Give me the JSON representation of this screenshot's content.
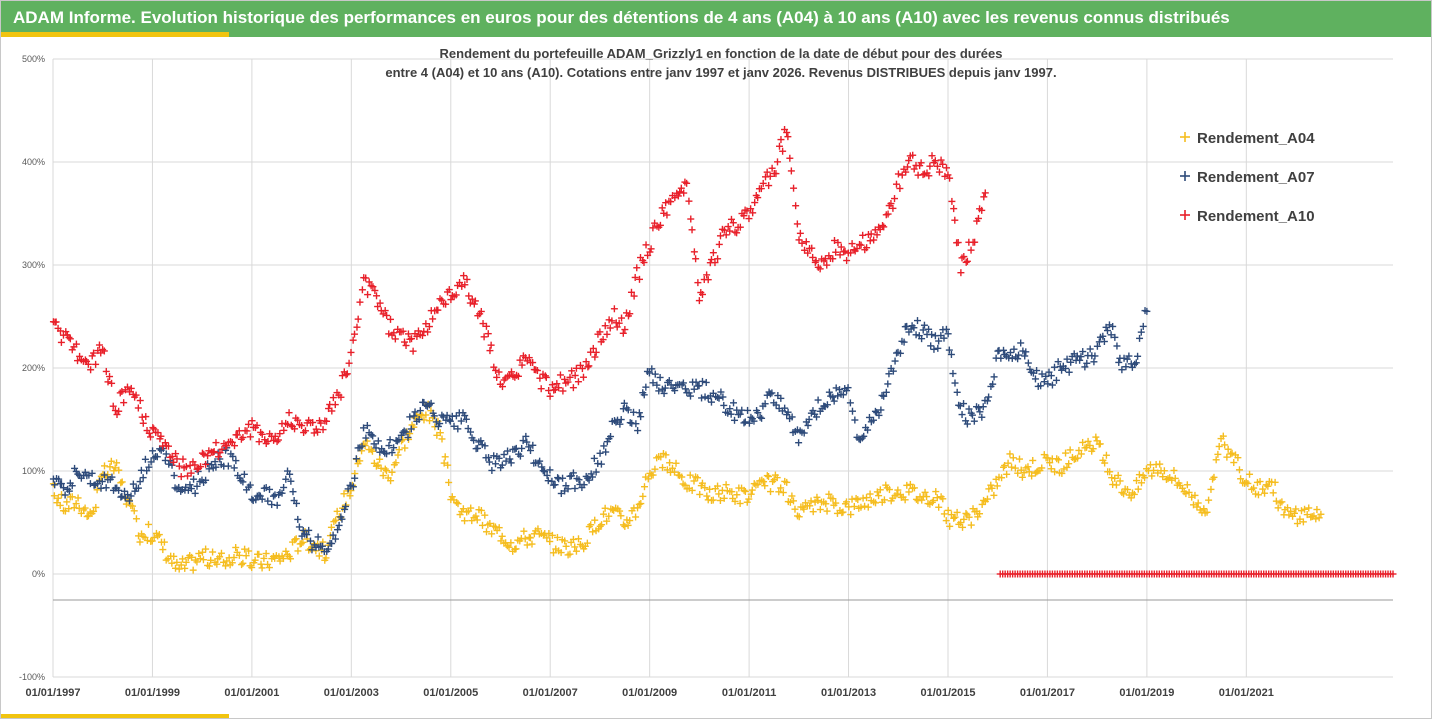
{
  "banner": {
    "title": "ADAM Informe. Evolution historique des performances en euros pour des détentions de 4 ans (A04) à 10 ans (A10) avec les revenus connus distribués",
    "color": "#5fb15f",
    "accent_color": "#f1c40f"
  },
  "chart_data": {
    "type": "scatter",
    "marker": "+",
    "title_line1": "Rendement du portefeuille ADAM_Grizzly1 en fonction de la date de début pour des durées",
    "title_line2": "entre 4 (A04) et 10 ans (A10). Cotations entre janv 1997 et janv 2026. Revenus DISTRIBUES depuis janv 1997.",
    "xlabel": "",
    "ylabel": "",
    "x_range": [
      1997.0,
      2023.95
    ],
    "ylim": [
      -100,
      500
    ],
    "y_ticks": [
      -100,
      0,
      100,
      200,
      300,
      400,
      500
    ],
    "y_tick_labels": [
      "-100%",
      "0%",
      "100%",
      "200%",
      "300%",
      "400%",
      "500%"
    ],
    "x_ticks": [
      1997,
      1999,
      2001,
      2003,
      2005,
      2007,
      2009,
      2011,
      2013,
      2015,
      2017,
      2019,
      2021
    ],
    "x_tick_labels": [
      "01/01/1997",
      "01/01/1999",
      "01/01/2001",
      "01/01/2003",
      "01/01/2005",
      "01/01/2007",
      "01/01/2009",
      "01/01/2011",
      "01/01/2013",
      "01/01/2015",
      "01/01/2017",
      "01/01/2019",
      "01/01/2021"
    ],
    "grid": true,
    "legend_position": "top-right",
    "series": [
      {
        "name": "Rendement_A04",
        "color": "#f5bd1f",
        "x": [
          1997.0,
          1997.25,
          1997.5,
          1997.75,
          1998.0,
          1998.25,
          1998.4,
          1998.5,
          1998.75,
          1999.0,
          1999.25,
          1999.5,
          1999.75,
          2000.0,
          2000.25,
          2000.5,
          2000.75,
          2001.0,
          2001.25,
          2001.5,
          2001.75,
          2002.0,
          2002.25,
          2002.5,
          2002.75,
          2003.0,
          2003.25,
          2003.5,
          2003.75,
          2004.0,
          2004.25,
          2004.5,
          2004.75,
          2005.0,
          2005.25,
          2005.5,
          2005.75,
          2006.0,
          2006.25,
          2006.5,
          2006.75,
          2007.0,
          2007.25,
          2007.5,
          2007.75,
          2008.0,
          2008.25,
          2008.5,
          2008.75,
          2009.0,
          2009.25,
          2009.5,
          2009.75,
          2010.0,
          2010.25,
          2010.5,
          2010.75,
          2011.0,
          2011.25,
          2011.5,
          2011.75,
          2012.0,
          2012.25,
          2012.5,
          2012.75,
          2013.0,
          2013.25,
          2013.5,
          2013.75,
          2014.0,
          2014.25,
          2014.5,
          2014.75,
          2015.0,
          2015.25,
          2015.5,
          2015.75,
          2016.0,
          2016.25,
          2016.5,
          2016.75,
          2017.0,
          2017.25,
          2017.5,
          2017.75,
          2018.0,
          2018.25,
          2018.5,
          2018.75,
          2019.0,
          2019.25,
          2019.5,
          2019.75,
          2020.0,
          2020.25,
          2020.5,
          2020.75,
          2021.0,
          2021.25,
          2021.5,
          2021.75,
          2022.0,
          2022.25,
          2022.5
        ],
        "y": [
          80,
          65,
          72,
          55,
          95,
          105,
          85,
          70,
          40,
          40,
          25,
          5,
          10,
          18,
          12,
          15,
          18,
          12,
          12,
          15,
          20,
          35,
          30,
          20,
          60,
          85,
          130,
          110,
          95,
          125,
          145,
          160,
          140,
          80,
          55,
          60,
          45,
          40,
          30,
          35,
          38,
          30,
          28,
          25,
          35,
          55,
          60,
          50,
          65,
          100,
          110,
          100,
          90,
          85,
          75,
          80,
          78,
          75,
          85,
          90,
          80,
          55,
          65,
          70,
          68,
          65,
          70,
          75,
          78,
          82,
          80,
          75,
          78,
          55,
          50,
          55,
          70,
          90,
          110,
          100,
          105,
          110,
          105,
          115,
          120,
          125,
          100,
          85,
          80,
          100,
          105,
          95,
          85,
          70,
          65,
          130,
          110,
          90,
          85,
          90,
          60,
          55,
          60,
          58
        ]
      },
      {
        "name": "Rendement_A07",
        "color": "#2e4b7a",
        "x": [
          1997.0,
          1997.25,
          1997.5,
          1997.75,
          1998.0,
          1998.25,
          1998.5,
          1998.75,
          1999.0,
          1999.25,
          1999.5,
          1999.75,
          2000.0,
          2000.25,
          2000.5,
          2000.75,
          2001.0,
          2001.25,
          2001.5,
          2001.75,
          2002.0,
          2002.25,
          2002.5,
          2002.75,
          2003.0,
          2003.25,
          2003.5,
          2003.75,
          2004.0,
          2004.25,
          2004.5,
          2004.75,
          2005.0,
          2005.25,
          2005.5,
          2005.75,
          2006.0,
          2006.25,
          2006.5,
          2006.75,
          2007.0,
          2007.25,
          2007.5,
          2007.75,
          2008.0,
          2008.25,
          2008.5,
          2008.75,
          2009.0,
          2009.25,
          2009.5,
          2009.75,
          2010.0,
          2010.25,
          2010.5,
          2010.75,
          2011.0,
          2011.25,
          2011.5,
          2011.75,
          2012.0,
          2012.25,
          2012.5,
          2012.75,
          2013.0,
          2013.2,
          2013.5,
          2013.75,
          2014.0,
          2014.25,
          2014.5,
          2014.75,
          2015.0,
          2015.25,
          2015.5,
          2015.75,
          2016.0,
          2016.25,
          2016.5,
          2016.75,
          2017.0,
          2017.25,
          2017.5,
          2017.75,
          2018.0,
          2018.25,
          2018.5,
          2018.75,
          2019.0
        ],
        "y": [
          95,
          85,
          100,
          95,
          90,
          85,
          75,
          90,
          120,
          115,
          85,
          80,
          95,
          110,
          115,
          100,
          80,
          75,
          75,
          95,
          40,
          30,
          25,
          50,
          85,
          140,
          125,
          120,
          130,
          150,
          165,
          150,
          145,
          150,
          130,
          110,
          105,
          115,
          125,
          110,
          95,
          85,
          90,
          95,
          110,
          140,
          160,
          145,
          200,
          180,
          185,
          180,
          180,
          175,
          165,
          155,
          150,
          160,
          175,
          160,
          130,
          150,
          170,
          175,
          180,
          130,
          150,
          180,
          215,
          245,
          235,
          225,
          235,
          160,
          150,
          165,
          210,
          215,
          220,
          190,
          185,
          200,
          205,
          210,
          215,
          245,
          200,
          205,
          255
        ]
      },
      {
        "name": "Rendement_A10",
        "color": "#e8202a",
        "x": [
          1997.0,
          1997.25,
          1997.5,
          1997.75,
          1998.0,
          1998.25,
          1998.5,
          1998.75,
          1999.0,
          1999.25,
          1999.5,
          1999.75,
          2000.0,
          2000.25,
          2000.5,
          2000.75,
          2001.0,
          2001.25,
          2001.5,
          2001.75,
          2002.0,
          2002.25,
          2002.5,
          2002.75,
          2003.0,
          2003.25,
          2003.5,
          2003.75,
          2004.0,
          2004.25,
          2004.5,
          2004.75,
          2005.0,
          2005.25,
          2005.5,
          2005.75,
          2006.0,
          2006.25,
          2006.5,
          2006.75,
          2007.0,
          2007.25,
          2007.5,
          2007.75,
          2008.0,
          2008.25,
          2008.5,
          2008.75,
          2009.0,
          2009.25,
          2009.5,
          2009.75,
          2010.0,
          2010.25,
          2010.5,
          2010.75,
          2011.0,
          2011.25,
          2011.5,
          2011.75,
          2012.0,
          2012.25,
          2012.5,
          2012.75,
          2013.0,
          2013.25,
          2013.5,
          2013.75,
          2014.0,
          2014.25,
          2014.5,
          2014.75,
          2015.0,
          2015.25,
          2015.5,
          2015.75
        ],
        "y": [
          240,
          230,
          215,
          200,
          220,
          160,
          180,
          160,
          135,
          125,
          105,
          100,
          110,
          120,
          125,
          135,
          140,
          135,
          130,
          150,
          145,
          140,
          150,
          175,
          210,
          280,
          270,
          240,
          230,
          225,
          240,
          260,
          270,
          285,
          260,
          230,
          180,
          190,
          210,
          190,
          180,
          185,
          190,
          200,
          230,
          250,
          240,
          290,
          320,
          350,
          360,
          380,
          270,
          300,
          330,
          340,
          350,
          380,
          390,
          430,
          330,
          310,
          300,
          320,
          310,
          320,
          330,
          340,
          380,
          400,
          390,
          400,
          390,
          300,
          320,
          370
        ]
      }
    ],
    "tail_series": {
      "series_name": "Rendement_A10",
      "x_start": 2016.05,
      "x_end": 2023.95,
      "y": 0
    }
  }
}
